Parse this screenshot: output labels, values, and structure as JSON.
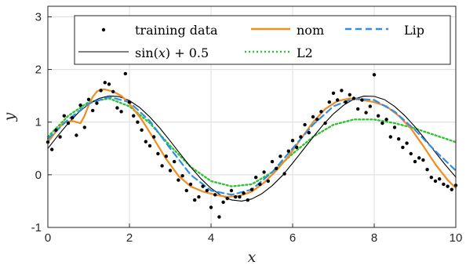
{
  "chart_data": {
    "type": "line",
    "xlabel": "x",
    "ylabel": "y",
    "xlim": [
      0,
      10
    ],
    "ylim": [
      -1,
      3.2
    ],
    "xticks": [
      0,
      2,
      4,
      6,
      8,
      10
    ],
    "xtick_labels": [
      "0",
      "2",
      "4",
      "6",
      "8",
      "10"
    ],
    "yticks": [
      -1,
      0,
      1,
      2,
      3
    ],
    "ytick_labels": [
      "-1",
      "0",
      "1",
      "2",
      "3"
    ],
    "grid": true,
    "legend_position": "top",
    "colors": {
      "training": "#000000",
      "nom": "#F28C1E",
      "lip": "#2F8FE6",
      "true": "#000000",
      "l2": "#33C233"
    },
    "legend": {
      "training": "training data",
      "nom": "nom",
      "lip": "Lip",
      "true_prefix": "sin(",
      "true_var": "x",
      "true_suffix": ") + 0.5",
      "l2": "L2"
    },
    "scatter": {
      "name": "training data",
      "x": [
        0.0,
        0.1,
        0.2,
        0.3,
        0.4,
        0.5,
        0.6,
        0.7,
        0.8,
        0.9,
        1.0,
        1.1,
        1.2,
        1.3,
        1.4,
        1.5,
        1.6,
        1.7,
        1.8,
        1.9,
        2.0,
        2.1,
        2.2,
        2.3,
        2.4,
        2.5,
        2.6,
        2.7,
        2.8,
        2.9,
        3.0,
        3.1,
        3.2,
        3.3,
        3.4,
        3.5,
        3.6,
        3.7,
        3.8,
        3.9,
        4.0,
        4.1,
        4.2,
        4.3,
        4.4,
        4.5,
        4.6,
        4.7,
        4.8,
        4.9,
        5.0,
        5.1,
        5.2,
        5.3,
        5.4,
        5.5,
        5.6,
        5.7,
        5.8,
        5.9,
        6.0,
        6.1,
        6.2,
        6.3,
        6.4,
        6.5,
        6.6,
        6.7,
        6.8,
        6.9,
        7.0,
        7.1,
        7.2,
        7.3,
        7.4,
        7.5,
        7.6,
        7.7,
        7.8,
        7.9,
        8.0,
        8.1,
        8.2,
        8.3,
        8.4,
        8.5,
        8.6,
        8.7,
        8.8,
        8.9,
        9.0,
        9.1,
        9.2,
        9.3,
        9.4,
        9.5,
        9.6,
        9.7,
        9.8,
        9.9,
        10.0
      ],
      "y": [
        0.62,
        0.48,
        0.85,
        0.72,
        1.12,
        0.98,
        1.08,
        0.75,
        1.32,
        0.9,
        1.43,
        1.22,
        1.36,
        1.6,
        1.75,
        1.72,
        1.58,
        1.27,
        1.2,
        1.92,
        1.38,
        1.12,
        1.0,
        0.85,
        0.63,
        0.55,
        0.72,
        0.4,
        0.17,
        0.35,
        0.08,
        0.25,
        -0.1,
        -0.02,
        -0.3,
        -0.18,
        -0.48,
        -0.42,
        -0.22,
        -0.3,
        -0.62,
        -0.38,
        -0.8,
        -0.52,
        -0.45,
        -0.3,
        -0.42,
        -0.42,
        -0.35,
        -0.48,
        -0.28,
        -0.05,
        -0.18,
        0.05,
        -0.12,
        0.25,
        0.12,
        0.35,
        0.02,
        0.45,
        0.65,
        0.52,
        0.72,
        0.95,
        0.8,
        1.1,
        1.05,
        1.2,
        0.98,
        1.38,
        1.55,
        1.42,
        1.6,
        1.38,
        1.52,
        1.45,
        1.25,
        1.42,
        1.18,
        1.3,
        1.9,
        1.12,
        0.98,
        1.05,
        0.72,
        0.9,
        0.68,
        0.52,
        0.6,
        0.4,
        0.25,
        0.32,
        0.28,
        0.1,
        -0.05,
        -0.12,
        -0.08,
        -0.18,
        -0.22,
        -0.28,
        -0.2
      ]
    },
    "series": [
      {
        "name": "nom",
        "x": [
          0,
          0.2,
          0.4,
          0.6,
          0.8,
          0.9,
          1.0,
          1.1,
          1.2,
          1.3,
          1.4,
          1.6,
          1.8,
          2.0,
          2.3,
          2.6,
          2.9,
          3.2,
          3.5,
          3.8,
          4.1,
          4.4,
          4.7,
          5.0,
          5.3,
          5.6,
          5.9,
          6.2,
          6.5,
          6.8,
          7.1,
          7.4,
          7.7,
          8.0,
          8.3,
          8.6,
          8.9,
          9.2,
          9.5,
          9.8,
          10.0
        ],
        "y": [
          0.62,
          0.82,
          1.0,
          1.02,
          0.98,
          1.12,
          1.32,
          1.48,
          1.58,
          1.62,
          1.62,
          1.58,
          1.5,
          1.35,
          1.05,
          0.68,
          0.3,
          -0.02,
          -0.22,
          -0.32,
          -0.38,
          -0.42,
          -0.4,
          -0.32,
          -0.15,
          0.08,
          0.35,
          0.68,
          1.0,
          1.25,
          1.4,
          1.45,
          1.42,
          1.38,
          1.3,
          1.12,
          0.88,
          0.55,
          0.2,
          -0.1,
          -0.25
        ]
      },
      {
        "name": "Lip",
        "x": [
          0,
          0.5,
          1.0,
          1.5,
          2.0,
          2.5,
          3.0,
          3.5,
          4.0,
          4.5,
          5.0,
          5.5,
          6.0,
          6.5,
          7.0,
          7.5,
          8.0,
          8.5,
          9.0,
          9.5,
          10.0
        ],
        "y": [
          0.68,
          1.05,
          1.35,
          1.48,
          1.38,
          1.02,
          0.5,
          0.0,
          -0.3,
          -0.38,
          -0.28,
          0.05,
          0.5,
          0.95,
          1.3,
          1.45,
          1.42,
          1.2,
          0.85,
          0.45,
          0.08
        ]
      },
      {
        "name": "sin(x) + 0.5",
        "x": [
          0,
          0.25,
          0.5,
          0.75,
          1.0,
          1.25,
          1.5,
          1.75,
          2.0,
          2.25,
          2.5,
          2.75,
          3.0,
          3.25,
          3.5,
          3.75,
          4.0,
          4.25,
          4.5,
          4.75,
          5.0,
          5.25,
          5.5,
          5.75,
          6.0,
          6.25,
          6.5,
          6.75,
          7.0,
          7.25,
          7.5,
          7.75,
          8.0,
          8.25,
          8.5,
          8.75,
          9.0,
          9.25,
          9.5,
          9.75,
          10.0
        ],
        "y": [
          0.5,
          0.747,
          0.979,
          1.182,
          1.341,
          1.449,
          1.497,
          1.484,
          1.409,
          1.278,
          1.098,
          0.882,
          0.641,
          0.392,
          0.149,
          -0.072,
          -0.257,
          -0.394,
          -0.478,
          -0.5,
          -0.459,
          -0.357,
          -0.206,
          -0.014,
          0.221,
          0.467,
          0.715,
          0.951,
          1.157,
          1.321,
          1.438,
          1.494,
          1.489,
          1.428,
          1.298,
          1.123,
          0.912,
          0.674,
          0.425,
          0.182,
          -0.044
        ]
      },
      {
        "name": "L2",
        "x": [
          0,
          0.5,
          1.0,
          1.5,
          2.0,
          2.5,
          3.0,
          3.5,
          4.0,
          4.5,
          5.0,
          5.5,
          6.0,
          6.5,
          7.0,
          7.5,
          8.0,
          8.5,
          9.0,
          9.5,
          10.0
        ],
        "y": [
          0.72,
          1.12,
          1.38,
          1.45,
          1.3,
          0.98,
          0.55,
          0.15,
          -0.12,
          -0.22,
          -0.18,
          0.05,
          0.4,
          0.72,
          0.95,
          1.05,
          1.05,
          0.98,
          0.88,
          0.75,
          0.62
        ]
      }
    ]
  }
}
